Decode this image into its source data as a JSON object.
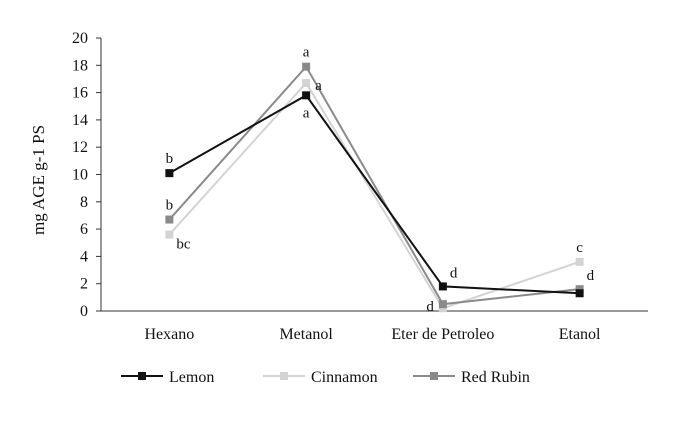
{
  "chart_data": {
    "type": "line",
    "title": "",
    "xlabel": "",
    "ylabel": "mg AGE g-1 PS",
    "ylim": [
      0,
      20
    ],
    "yticks": [
      0,
      2,
      4,
      6,
      8,
      10,
      12,
      14,
      16,
      18,
      20
    ],
    "categories": [
      "Hexano",
      "Metanol",
      "Eter de Petroleo",
      "Etanol"
    ],
    "grid": false,
    "legend_position": "bottom",
    "series": [
      {
        "name": "Lemon",
        "color": "#111111",
        "values": [
          10.1,
          15.8,
          1.8,
          1.3
        ]
      },
      {
        "name": "Cinnamon",
        "color": "#d3d3d3",
        "values": [
          5.6,
          16.7,
          0.2,
          3.6
        ]
      },
      {
        "name": "Red Rubin",
        "color": "#8a8a8a",
        "values": [
          6.7,
          17.9,
          0.5,
          1.6
        ]
      }
    ],
    "annotations": [
      {
        "text": "b",
        "category": "Hexano",
        "y": 10.1,
        "placement": "above"
      },
      {
        "text": "b",
        "category": "Hexano",
        "y": 6.7,
        "placement": "above"
      },
      {
        "text": "bc",
        "category": "Hexano",
        "y": 5.6,
        "placement": "below-right"
      },
      {
        "text": "a",
        "category": "Metanol",
        "y": 17.9,
        "placement": "above"
      },
      {
        "text": "a",
        "category": "Metanol",
        "y": 16.7,
        "placement": "right"
      },
      {
        "text": "a",
        "category": "Metanol",
        "y": 15.8,
        "placement": "below"
      },
      {
        "text": "d",
        "category": "Eter de Petroleo",
        "y": 1.8,
        "placement": "above-right"
      },
      {
        "text": "d",
        "category": "Eter de Petroleo",
        "y": 0.5,
        "placement": "left"
      },
      {
        "text": "c",
        "category": "Etanol",
        "y": 3.6,
        "placement": "above"
      },
      {
        "text": "d",
        "category": "Etanol",
        "y": 1.6,
        "placement": "above-right"
      }
    ]
  }
}
